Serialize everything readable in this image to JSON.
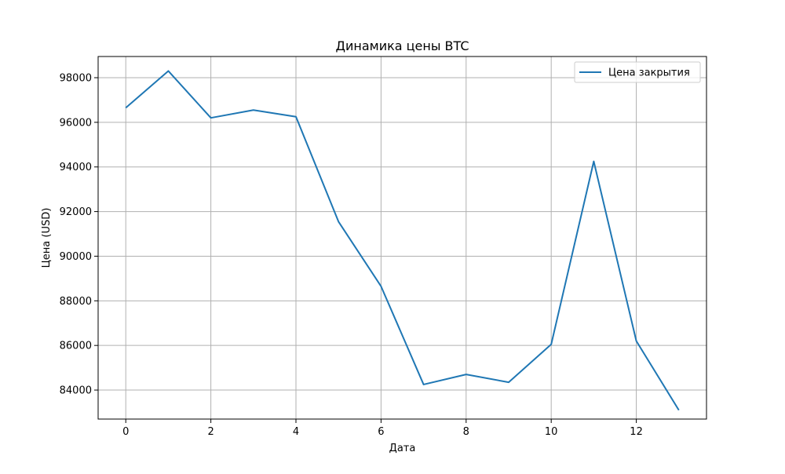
{
  "chart_data": {
    "type": "line",
    "title": "Динамика цены BTC",
    "xlabel": "Дата",
    "ylabel": "Цена (USD)",
    "xlim": [
      -0.65,
      13.65
    ],
    "ylim": [
      82700,
      98950
    ],
    "x_ticks": [
      0,
      2,
      4,
      6,
      8,
      10,
      12
    ],
    "x_tick_labels": [
      "0",
      "2",
      "4",
      "6",
      "8",
      "10",
      "12"
    ],
    "y_ticks": [
      84000,
      86000,
      88000,
      90000,
      92000,
      94000,
      96000,
      98000
    ],
    "y_tick_labels": [
      "84000",
      "86000",
      "88000",
      "90000",
      "92000",
      "94000",
      "96000",
      "98000"
    ],
    "grid": true,
    "legend_position": "top-right",
    "series": [
      {
        "name": "Цена закрытия",
        "color": "#1f77b4",
        "x": [
          0,
          1,
          2,
          3,
          4,
          5,
          6,
          7,
          8,
          9,
          10,
          11,
          12,
          13
        ],
        "y": [
          96650,
          98300,
          96200,
          96550,
          96250,
          91550,
          88650,
          84250,
          84700,
          84350,
          86050,
          94250,
          86200,
          83100
        ]
      }
    ]
  }
}
